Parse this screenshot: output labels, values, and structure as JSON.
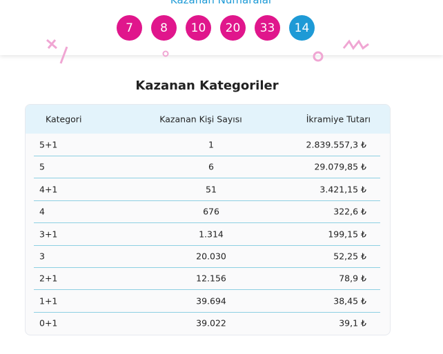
{
  "header": {
    "title": "Kazanan Numaralar",
    "numbers": [
      "7",
      "8",
      "10",
      "20",
      "33"
    ],
    "bonus": "14"
  },
  "section": {
    "title": "Kazanan Kategoriler"
  },
  "table": {
    "columns": [
      "Kategori",
      "Kazanan Kişi Sayısı",
      "İkramiye Tutarı"
    ],
    "rows": [
      [
        "5+1",
        "1",
        "2.839.557,3 ₺"
      ],
      [
        "5",
        "6",
        "29.079,85 ₺"
      ],
      [
        "4+1",
        "51",
        "3.421,15 ₺"
      ],
      [
        "4",
        "676",
        "322,6 ₺"
      ],
      [
        "3+1",
        "1.314",
        "199,15 ₺"
      ],
      [
        "3",
        "20.030",
        "52,25 ₺"
      ],
      [
        "2+1",
        "12.156",
        "78,9 ₺"
      ],
      [
        "1+1",
        "39.694",
        "38,45 ₺"
      ],
      [
        "0+1",
        "39.022",
        "39,1 ₺"
      ]
    ]
  }
}
